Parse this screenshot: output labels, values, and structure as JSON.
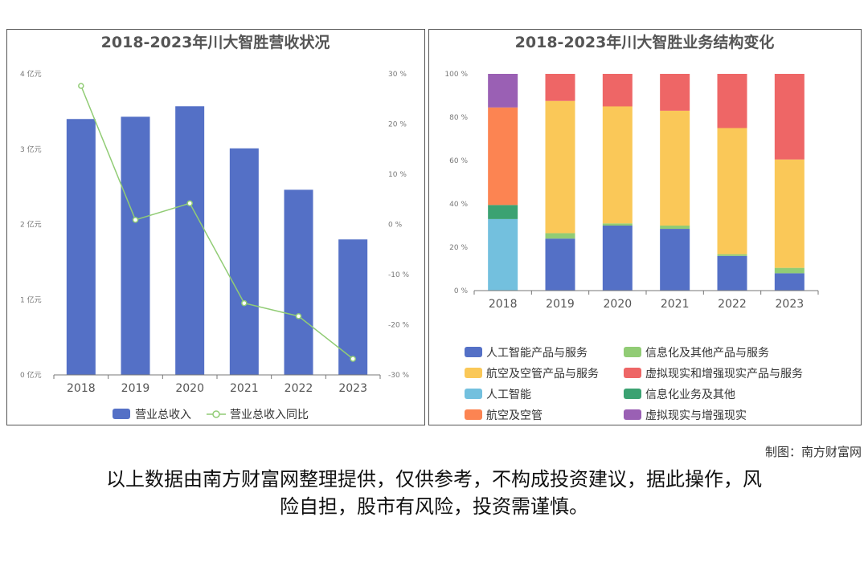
{
  "colors": {
    "bar": "#5470c6",
    "line": "#91cc75"
  },
  "chart_data": [
    {
      "type": "bar+line",
      "title": "2018-2023年川大智胜营收状况",
      "categories": [
        "2018",
        "2019",
        "2020",
        "2021",
        "2022",
        "2023"
      ],
      "series": [
        {
          "name": "营业总收入",
          "type": "bar",
          "axis": "left",
          "values": [
            3.4,
            3.43,
            3.57,
            3.01,
            2.46,
            1.8
          ]
        },
        {
          "name": "营业总收入同比",
          "type": "line",
          "axis": "right",
          "values": [
            27.6,
            0.9,
            4.2,
            -15.7,
            -18.3,
            -26.8
          ]
        }
      ],
      "y_left": {
        "ticks": [
          "0 亿元",
          "1 亿元",
          "2 亿元",
          "3 亿元",
          "4 亿元"
        ],
        "ylim": [
          0,
          4
        ]
      },
      "y_right": {
        "ticks": [
          "-30 %",
          "-20 %",
          "-10 %",
          "0 %",
          "10 %",
          "20 %",
          "30 %"
        ],
        "ylim": [
          -30,
          30
        ]
      },
      "legend": [
        "营业总收入",
        "营业总收入同比"
      ]
    },
    {
      "type": "stacked-bar-100",
      "title": "2018-2023年川大智胜业务结构变化",
      "categories": [
        "2018",
        "2019",
        "2020",
        "2021",
        "2022",
        "2023"
      ],
      "y_ticks": [
        "0 %",
        "20 %",
        "40 %",
        "60 %",
        "80 %",
        "100 %"
      ],
      "ylim": [
        0,
        100
      ],
      "series": [
        {
          "name": "人工智能产品与服务",
          "color": "#5470c6",
          "values": [
            0,
            24,
            30,
            28.5,
            16,
            8
          ]
        },
        {
          "name": "信息化及其他产品与服务",
          "color": "#91cc75",
          "values": [
            0,
            2.5,
            1,
            1.5,
            0.8,
            2.5
          ]
        },
        {
          "name": "航空及空管产品与服务",
          "color": "#fac858",
          "values": [
            0,
            61,
            54,
            53,
            58.2,
            50
          ]
        },
        {
          "name": "虚拟现实和增强现实产品与服务",
          "color": "#ee6666",
          "values": [
            0,
            12.5,
            15,
            17,
            25,
            39.5
          ]
        },
        {
          "name": "人工智能",
          "color": "#73c0de",
          "values": [
            33,
            0,
            0,
            0,
            0,
            0
          ]
        },
        {
          "name": "信息化业务及其他",
          "color": "#3ba272",
          "values": [
            6.5,
            0,
            0,
            0,
            0,
            0
          ]
        },
        {
          "name": "航空及空管",
          "color": "#fc8452",
          "values": [
            45,
            0,
            0,
            0,
            0,
            0
          ]
        },
        {
          "name": "虚拟现实与增强现实",
          "color": "#9a60b4",
          "values": [
            15.5,
            0,
            0,
            0,
            0,
            0
          ]
        }
      ]
    }
  ],
  "footer": {
    "credit": "制图：南方财富网",
    "disclaimer_line1": "以上数据由南方财富网整理提供，仅供参考，不构成投资建议，据此操作，风",
    "disclaimer_line2": "险自担，股市有风险，投资需谨慎。"
  }
}
